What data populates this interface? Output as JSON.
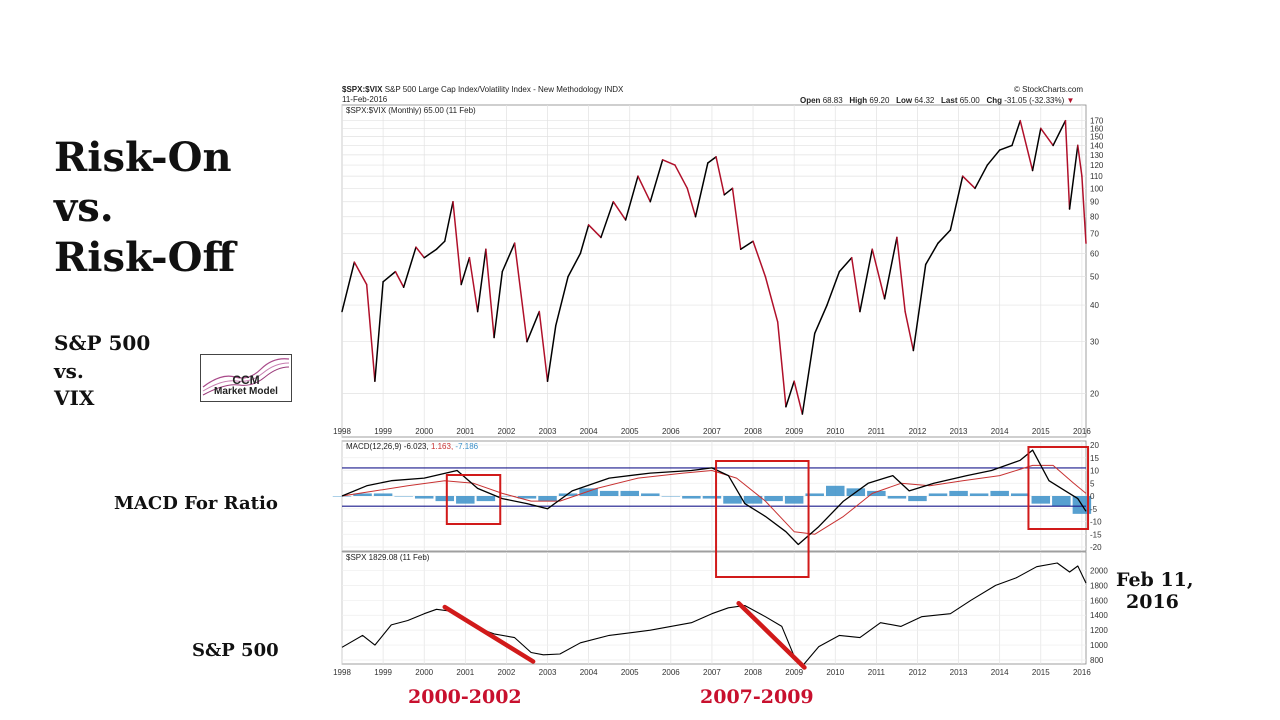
{
  "titles": {
    "line1": "Risk-On",
    "line2": "vs.",
    "line3": "Risk-Off"
  },
  "subtitle": {
    "line1": "S&P 500",
    "line2": "vs.",
    "line3": "VIX"
  },
  "logo": {
    "line1": "CCM",
    "line2": "Market Model"
  },
  "side_labels": {
    "macd": "MACD For Ratio",
    "spx": "S&P 500",
    "date_line1": "Feb 11,",
    "date_line2": "2016"
  },
  "red_labels": {
    "left": "2000-2002",
    "right": "2007-2009"
  },
  "header": {
    "symbol": "$SPX:$VIX",
    "description": "S&P 500 Large Cap Index/Volatility Index - New Methodology  INDX",
    "date": "11-Feb-2016",
    "brand": "© StockCharts.com",
    "open_label": "Open",
    "open": "68.83",
    "high_label": "High",
    "high": "69.20",
    "low_label": "Low",
    "low": "64.32",
    "last_label": "Last",
    "last": "65.00",
    "chg_label": "Chg",
    "chg": "-31.05 (-32.33%)"
  },
  "panel_legends": {
    "ratio": "$SPX:$VIX (Monthly) 65.00 (11 Feb)",
    "macd_prefix": "MACD(12,26,9) -6.023,",
    "macd_signal": "1.163,",
    "macd_hist": "-7.186",
    "spx": "$SPX 1829.08 (11 Feb)"
  },
  "colors": {
    "up": "#000000",
    "down": "#b0102a",
    "signal": "#c83232",
    "histogram": "#3a8fc8",
    "band": "#1a1a8c",
    "highlight": "#d11a1a",
    "label_red": "#c8102e"
  },
  "chart_data": [
    {
      "type": "line",
      "title": "$SPX:$VIX",
      "scale": "log",
      "ylim": [
        15,
        175
      ],
      "y_ticks": [
        "20",
        "30",
        "40",
        "50",
        "60",
        "70",
        "80",
        "90",
        "100",
        "110",
        "120",
        "130",
        "140",
        "150",
        "160",
        "170"
      ],
      "x_ticks": [
        "1998",
        "1999",
        "2000",
        "2001",
        "2002",
        "2003",
        "2004",
        "2005",
        "2006",
        "2007",
        "2008",
        "2009",
        "2010",
        "2011",
        "2012",
        "2013",
        "2014",
        "2015",
        "2016"
      ],
      "x": [
        1998.0,
        1998.3,
        1998.6,
        1998.8,
        1999.0,
        1999.3,
        1999.5,
        1999.8,
        2000.0,
        2000.3,
        2000.5,
        2000.7,
        2000.9,
        2001.1,
        2001.3,
        2001.5,
        2001.7,
        2001.9,
        2002.2,
        2002.5,
        2002.8,
        2003.0,
        2003.2,
        2003.5,
        2003.8,
        2004.0,
        2004.3,
        2004.6,
        2004.9,
        2005.2,
        2005.5,
        2005.8,
        2006.1,
        2006.4,
        2006.6,
        2006.9,
        2007.1,
        2007.3,
        2007.5,
        2007.7,
        2008.0,
        2008.3,
        2008.6,
        2008.8,
        2009.0,
        2009.2,
        2009.5,
        2009.8,
        2010.1,
        2010.4,
        2010.6,
        2010.9,
        2011.2,
        2011.5,
        2011.7,
        2011.9,
        2012.2,
        2012.5,
        2012.8,
        2013.1,
        2013.4,
        2013.7,
        2014.0,
        2014.3,
        2014.5,
        2014.8,
        2015.0,
        2015.3,
        2015.6,
        2015.7,
        2015.9,
        2016.0,
        2016.1
      ],
      "values": [
        38,
        56,
        47,
        22,
        48,
        52,
        46,
        63,
        58,
        62,
        66,
        90,
        47,
        58,
        38,
        62,
        31,
        52,
        65,
        30,
        38,
        22,
        34,
        50,
        60,
        75,
        68,
        90,
        78,
        110,
        90,
        125,
        120,
        100,
        80,
        122,
        128,
        95,
        100,
        62,
        66,
        50,
        35,
        18,
        22,
        17,
        32,
        40,
        52,
        58,
        38,
        62,
        42,
        68,
        38,
        28,
        55,
        65,
        72,
        110,
        100,
        120,
        135,
        140,
        170,
        115,
        160,
        140,
        170,
        85,
        140,
        110,
        65
      ]
    },
    {
      "type": "line",
      "title": "MACD(12,26,9)",
      "ylim": [
        -20,
        20
      ],
      "y_ticks": [
        "20",
        "15",
        "10",
        "5",
        "0",
        "-5",
        "-10",
        "-15",
        "-20"
      ],
      "band": [
        11,
        -4
      ],
      "series": [
        {
          "name": "MACD",
          "x": [
            1998.0,
            1998.6,
            1999.2,
            2000.0,
            2000.8,
            2001.3,
            2001.9,
            2002.5,
            2003.0,
            2003.6,
            2004.5,
            2005.5,
            2006.5,
            2007.0,
            2007.4,
            2007.8,
            2008.3,
            2008.8,
            2009.1,
            2009.6,
            2010.2,
            2010.8,
            2011.4,
            2011.8,
            2012.4,
            2013.2,
            2013.8,
            2014.5,
            2014.8,
            2015.2,
            2015.6,
            2015.9,
            2016.1
          ],
          "values": [
            0,
            4,
            6,
            7,
            10,
            3,
            -1,
            -3,
            -5,
            2,
            7,
            9,
            10,
            11,
            8,
            -3,
            -8,
            -14,
            -19,
            -12,
            -2,
            5,
            8,
            2,
            5,
            8,
            10,
            14,
            18,
            6,
            2,
            -1,
            -6
          ]
        },
        {
          "name": "Signal",
          "x": [
            1998.0,
            1998.8,
            1999.6,
            2000.5,
            2001.2,
            2001.9,
            2002.6,
            2003.3,
            2004.2,
            2005.2,
            2006.3,
            2007.0,
            2007.6,
            2008.3,
            2009.0,
            2009.5,
            2010.2,
            2010.9,
            2011.6,
            2012.3,
            2013.1,
            2014.0,
            2014.8,
            2015.3,
            2015.8,
            2016.1
          ],
          "values": [
            0,
            2,
            4,
            6,
            5,
            1,
            -2,
            -2,
            3,
            7,
            9,
            10,
            7,
            -2,
            -14,
            -15,
            -8,
            1,
            5,
            4,
            6,
            8,
            12,
            12,
            5,
            1
          ]
        }
      ],
      "histogram_x": [
        1998.0,
        1998.5,
        1999.0,
        1999.5,
        2000.0,
        2000.5,
        2001.0,
        2001.5,
        2002.0,
        2002.5,
        2003.0,
        2003.5,
        2004.0,
        2004.5,
        2005.0,
        2005.5,
        2006.0,
        2006.5,
        2007.0,
        2007.5,
        2008.0,
        2008.5,
        2009.0,
        2009.5,
        2010.0,
        2010.5,
        2011.0,
        2011.5,
        2012.0,
        2012.5,
        2013.0,
        2013.5,
        2014.0,
        2014.5,
        2015.0,
        2015.5,
        2016.0
      ],
      "histogram": [
        0,
        1,
        1,
        0,
        -1,
        -2,
        -3,
        -2,
        0,
        -1,
        -2,
        1,
        3,
        2,
        2,
        1,
        0,
        -1,
        -1,
        -3,
        -3,
        -2,
        -3,
        1,
        4,
        3,
        2,
        -1,
        -2,
        1,
        2,
        1,
        2,
        1,
        -3,
        -4,
        -7
      ]
    },
    {
      "type": "line",
      "title": "$SPX",
      "ylim": [
        800,
        2100
      ],
      "y_ticks": [
        "800",
        "1000",
        "1200",
        "1400",
        "1600",
        "1800",
        "2000"
      ],
      "x": [
        1998.0,
        1998.5,
        1998.8,
        1999.2,
        1999.6,
        2000.0,
        2000.3,
        2000.7,
        2001.2,
        2001.7,
        2002.2,
        2002.6,
        2002.9,
        2003.3,
        2003.8,
        2004.5,
        2005.5,
        2006.5,
        2007.0,
        2007.4,
        2007.8,
        2008.3,
        2008.7,
        2009.0,
        2009.2,
        2009.6,
        2010.1,
        2010.6,
        2011.1,
        2011.6,
        2012.1,
        2012.8,
        2013.3,
        2013.9,
        2014.4,
        2014.9,
        2015.4,
        2015.7,
        2015.9,
        2016.1
      ],
      "values": [
        970,
        1130,
        1000,
        1270,
        1330,
        1420,
        1480,
        1450,
        1250,
        1150,
        1100,
        900,
        870,
        880,
        1030,
        1130,
        1200,
        1300,
        1420,
        1500,
        1530,
        1380,
        1250,
        850,
        720,
        980,
        1130,
        1100,
        1300,
        1250,
        1380,
        1420,
        1600,
        1800,
        1900,
        2050,
        2100,
        1980,
        2060,
        1830
      ]
    }
  ]
}
